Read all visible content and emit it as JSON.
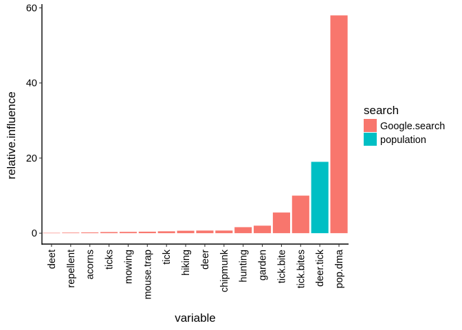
{
  "chart_data": {
    "type": "bar",
    "xlabel": "variable",
    "ylabel": "relative.influence",
    "ylim": [
      -2.9,
      61
    ],
    "yticks": [
      0,
      20,
      40,
      60
    ],
    "categories": [
      "deet",
      "repellent",
      "acorns",
      "ticks",
      "mowing",
      "mouse.trap",
      "tick",
      "hiking",
      "deer",
      "chipmunk",
      "hunting",
      "garden",
      "tick.bite",
      "tick.bites",
      "deer.tick",
      "pop.dma"
    ],
    "values": [
      0.1,
      0.15,
      0.2,
      0.3,
      0.35,
      0.4,
      0.5,
      0.65,
      0.7,
      0.7,
      1.6,
      2.0,
      5.5,
      10.0,
      19.0,
      58.0
    ],
    "groups": [
      "Google.search",
      "Google.search",
      "Google.search",
      "Google.search",
      "Google.search",
      "Google.search",
      "Google.search",
      "Google.search",
      "Google.search",
      "Google.search",
      "Google.search",
      "Google.search",
      "Google.search",
      "Google.search",
      "population",
      "Google.search"
    ],
    "legend": {
      "title": "search",
      "position": "right",
      "entries": [
        {
          "name": "Google.search",
          "color": "#F8766D"
        },
        {
          "name": "population",
          "color": "#00BFC4"
        }
      ]
    },
    "grid": false
  }
}
